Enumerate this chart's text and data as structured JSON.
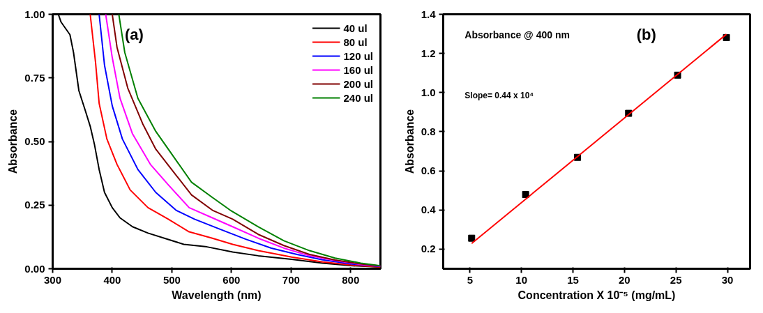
{
  "chart_data": [
    {
      "type": "line",
      "xlabel": "Wavelength (nm)",
      "ylabel": "Absorbance",
      "xlim": [
        300,
        850
      ],
      "ylim": [
        0,
        1
      ],
      "xticks": [
        300,
        400,
        500,
        600,
        700,
        800
      ],
      "yticks": [
        {
          "value": 0,
          "label": "0.00"
        },
        {
          "value": 0.25,
          "label": "0.25"
        },
        {
          "value": 0.5,
          "label": "0.50"
        },
        {
          "value": 0.75,
          "label": "0.75"
        },
        {
          "value": 1,
          "label": "1.00"
        }
      ],
      "grid": false,
      "legend": "top right",
      "annotations": [
        "(a)"
      ],
      "series": [
        {
          "name": "40 ul",
          "color": "#000000",
          "x": [
            309.5,
            314,
            329,
            335,
            344,
            355,
            363,
            370,
            378,
            387,
            400,
            413,
            434,
            460,
            494,
            520,
            559,
            602,
            645,
            701,
            753,
            800,
            850
          ],
          "values": [
            1.0,
            0.97,
            0.92,
            0.85,
            0.7,
            0.62,
            0.56,
            0.49,
            0.39,
            0.3,
            0.24,
            0.2,
            0.165,
            0.14,
            0.115,
            0.096,
            0.086,
            0.066,
            0.051,
            0.037,
            0.022,
            0.012,
            0.007
          ]
        },
        {
          "name": "80 ul",
          "color": "#ff0000",
          "x": [
            363,
            372,
            378,
            391,
            408,
            430,
            460,
            494,
            529,
            568,
            602,
            645,
            701,
            753,
            800,
            850
          ],
          "values": [
            1.0,
            0.81,
            0.65,
            0.51,
            0.41,
            0.31,
            0.24,
            0.195,
            0.145,
            0.12,
            0.096,
            0.071,
            0.046,
            0.027,
            0.015,
            0.007
          ]
        },
        {
          "name": "120 ul",
          "color": "#0000ff",
          "x": [
            378,
            387,
            400,
            417,
            443,
            473,
            507,
            538,
            581,
            624,
            667,
            710,
            753,
            800,
            850
          ],
          "values": [
            1.0,
            0.8,
            0.64,
            0.51,
            0.39,
            0.3,
            0.23,
            0.195,
            0.155,
            0.116,
            0.081,
            0.056,
            0.035,
            0.019,
            0.009
          ]
        },
        {
          "name": "160 ul",
          "color": "#ff00ff",
          "x": [
            389,
            400,
            413,
            434,
            464,
            494,
            529,
            568,
            602,
            645,
            688,
            731,
            774,
            817,
            850
          ],
          "values": [
            1.0,
            0.83,
            0.67,
            0.53,
            0.41,
            0.33,
            0.24,
            0.2,
            0.165,
            0.12,
            0.081,
            0.051,
            0.032,
            0.017,
            0.01
          ]
        },
        {
          "name": "200 ul",
          "color": "#800000",
          "x": [
            400,
            408,
            426,
            451,
            473,
            503,
            533,
            568,
            602,
            645,
            688,
            731,
            774,
            817,
            850
          ],
          "values": [
            1.0,
            0.87,
            0.71,
            0.57,
            0.47,
            0.38,
            0.29,
            0.23,
            0.195,
            0.135,
            0.091,
            0.056,
            0.034,
            0.019,
            0.011
          ]
        },
        {
          "name": "240 ul",
          "color": "#008000",
          "x": [
            411,
            421,
            443,
            473,
            503,
            533,
            568,
            598,
            645,
            688,
            731,
            774,
            817,
            850
          ],
          "values": [
            1.0,
            0.85,
            0.67,
            0.54,
            0.44,
            0.34,
            0.28,
            0.23,
            0.165,
            0.11,
            0.071,
            0.042,
            0.022,
            0.012
          ]
        }
      ]
    },
    {
      "type": "scatter",
      "xlabel": "Concentration X 10⁻⁵ (mg/mL)",
      "ylabel": "Absorbance",
      "xlim": [
        2.4,
        32.2
      ],
      "ylim": [
        0.1,
        1.4
      ],
      "xticks": [
        5,
        10,
        15,
        20,
        25,
        30
      ],
      "yticks": [
        0.2,
        0.4,
        0.6,
        0.8,
        {
          "value": 1,
          "label": "1.0"
        },
        1.2,
        1.4
      ],
      "grid": false,
      "annotations": [
        "Absorbance @ 400 nm",
        "(b)",
        "Slope= 0.44 x 10⁴"
      ],
      "series": [
        {
          "color": "#000000",
          "marker": "square",
          "x": [
            5.16,
            10.4,
            15.44,
            20.4,
            25.16,
            29.9
          ],
          "values": [
            0.256,
            0.479,
            0.669,
            0.894,
            1.089,
            1.281
          ]
        },
        {
          "type": "line",
          "color": "#ff0000",
          "x": [
            5.16,
            29.9
          ],
          "values": [
            0.229,
            1.298
          ]
        }
      ]
    }
  ]
}
